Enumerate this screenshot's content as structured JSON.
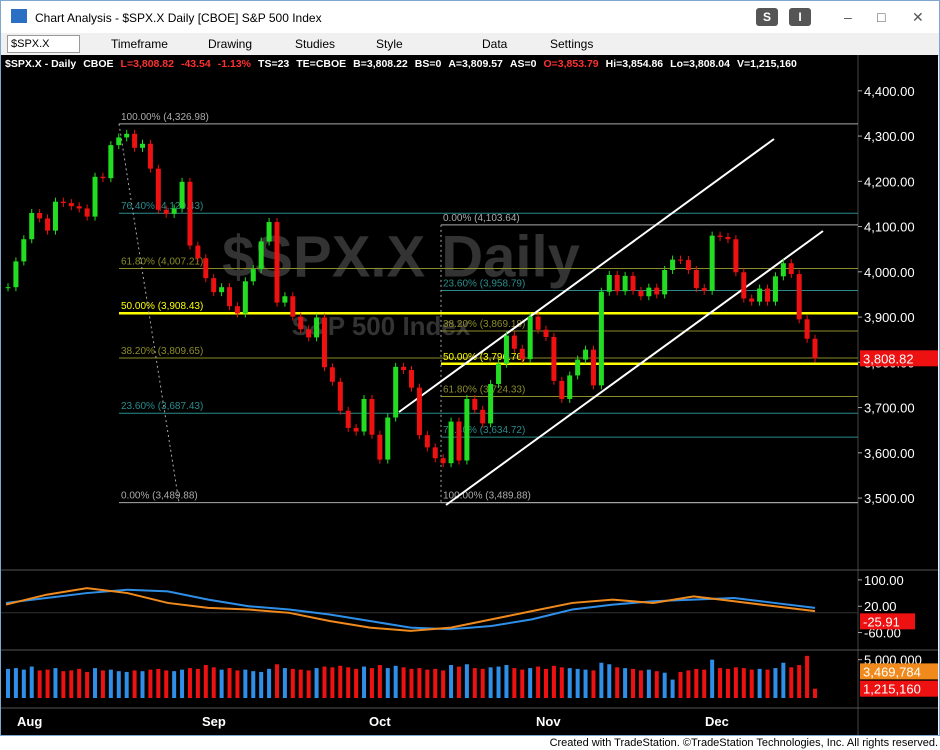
{
  "window": {
    "title": "Chart Analysis - $SPX.X Daily [CBOE] S&P 500 Index",
    "buttons": [
      "S",
      "I"
    ]
  },
  "toolbar": {
    "symbol": "$SPX.X",
    "items": [
      "Timeframe",
      "Drawing",
      "Studies",
      "Style",
      "Data",
      "Settings"
    ]
  },
  "status": [
    {
      "text": "$SPX.X - Daily",
      "color": "#ffffff"
    },
    {
      "text": "CBOE",
      "color": "#ffffff"
    },
    {
      "text": "L=3,808.82",
      "color": "#ff3030"
    },
    {
      "text": "-43.54",
      "color": "#ff3030"
    },
    {
      "text": "-1.13%",
      "color": "#ff3030"
    },
    {
      "text": "TS=23",
      "color": "#ffffff"
    },
    {
      "text": "TE=CBOE",
      "color": "#ffffff"
    },
    {
      "text": "B=3,808.22",
      "color": "#ffffff"
    },
    {
      "text": "BS=0",
      "color": "#ffffff"
    },
    {
      "text": "A=3,809.57",
      "color": "#ffffff"
    },
    {
      "text": "AS=0",
      "color": "#ffffff"
    },
    {
      "text": "O=3,853.79",
      "color": "#ff3030"
    },
    {
      "text": "Hi=3,854.86",
      "color": "#ffffff"
    },
    {
      "text": "Lo=3,808.04",
      "color": "#ffffff"
    },
    {
      "text": "V=1,215,160",
      "color": "#ffffff"
    }
  ],
  "watermark": {
    "title": "$SPX.X Daily",
    "subtitle": "S&P 500 Index"
  },
  "chart_data": {
    "type": "candlestick",
    "closes": [
      3966,
      4023,
      4072,
      4130,
      4118,
      4091,
      4155,
      4152,
      4145,
      4140,
      4122,
      4210,
      4207,
      4280,
      4297,
      4305,
      4274,
      4283,
      4228,
      4137,
      4128,
      4140,
      4199,
      4058,
      4030,
      3986,
      3955,
      3966,
      3924,
      3908,
      3979,
      4006,
      4067,
      4110,
      3932,
      3946,
      3901,
      3873,
      3855,
      3899,
      3789,
      3757,
      3693,
      3655,
      3647,
      3719,
      3640,
      3585,
      3678,
      3790,
      3783,
      3744,
      3639,
      3612,
      3588,
      3577,
      3669,
      3583,
      3719,
      3695,
      3665,
      3752,
      3797,
      3859,
      3830,
      3807,
      3901,
      3872,
      3856,
      3759,
      3719,
      3771,
      3806,
      3828,
      3749,
      3956,
      3993,
      3957,
      3991,
      3958,
      3946,
      3965,
      3950,
      4004,
      4027,
      4026,
      4004,
      3964,
      3958,
      4080,
      4077,
      4072,
      3999,
      3941,
      3934,
      3963,
      3934,
      3990,
      4019,
      3995,
      3895,
      3852,
      3808.82
    ],
    "up_color": "#22dd22",
    "down_color": "#ee1111",
    "ylim": [
      3341,
      4446
    ],
    "yticks": [
      {
        "value": 4400,
        "label": "4,400.00"
      },
      {
        "value": 4300,
        "label": "4,300.00"
      },
      {
        "value": 4200,
        "label": "4,200.00"
      },
      {
        "value": 4100,
        "label": "4,100.00"
      },
      {
        "value": 4000,
        "label": "4,000.00"
      },
      {
        "value": 3900,
        "label": "3,900.00"
      },
      {
        "value": 3800,
        "label": "3,800.00"
      },
      {
        "value": 3700,
        "label": "3,700.00"
      },
      {
        "value": 3600,
        "label": "3,600.00"
      },
      {
        "value": 3500,
        "label": "3,500.00"
      }
    ],
    "price_tag": {
      "value": 3808.82,
      "label": "3,808.82"
    },
    "x_labels": [
      "Aug",
      "Sep",
      "Oct",
      "Nov",
      "Dec"
    ],
    "fib_left": [
      {
        "value": 4326.98,
        "label": "100.00% (4,326.98)",
        "color": "#aaaaaa"
      },
      {
        "value": 4129.43,
        "label": "76.40% (4,129.43)",
        "color": "#2a8c8c"
      },
      {
        "value": 4007.21,
        "label": "61.80% (4,007.21)",
        "color": "#8c8c2a"
      },
      {
        "value": 3908.43,
        "label": "50.00% (3,908.43)",
        "color": "#ffff00"
      },
      {
        "value": 3809.65,
        "label": "38.20% (3,809.65)",
        "color": "#8c8c2a"
      },
      {
        "value": 3687.43,
        "label": "23.60% (3,687.43)",
        "color": "#2a8c8c"
      },
      {
        "value": 3489.88,
        "label": "0.00% (3,489.88)",
        "color": "#aaaaaa"
      }
    ],
    "fib_right": [
      {
        "value": 4103.64,
        "label": "0.00% (4,103.64)",
        "color": "#aaaaaa"
      },
      {
        "value": 3958.79,
        "label": "23.60% (3,958.79)",
        "color": "#2a8c8c"
      },
      {
        "value": 3869.18,
        "label": "38.20% (3,869.18)",
        "color": "#8c8c2a"
      },
      {
        "value": 3796.76,
        "label": "50.00% (3,796.76)",
        "color": "#ffff00"
      },
      {
        "value": 3724.33,
        "label": "61.80% (3,724.33)",
        "color": "#8c8c2a"
      },
      {
        "value": 3634.72,
        "label": "76.40% (3,634.72)",
        "color": "#2a8c8c"
      },
      {
        "value": 3489.88,
        "label": "100.00% (3,489.88)",
        "color": "#aaaaaa"
      }
    ],
    "indicator": {
      "ylim": [
        -113,
        124
      ],
      "yticks": [
        {
          "value": 100,
          "label": "100.00"
        },
        {
          "value": 20,
          "label": "20.00"
        },
        {
          "value": -60,
          "label": "-60.00"
        }
      ],
      "series": [
        {
          "name": "MACD",
          "color": "#2f8fe8",
          "values": [
            30,
            45,
            60,
            70,
            65,
            40,
            20,
            10,
            -5,
            -25,
            -45,
            -50,
            -40,
            -20,
            10,
            25,
            35,
            40,
            45,
            30,
            15
          ]
        },
        {
          "name": "Signal",
          "color": "#f08a1c",
          "values": [
            25,
            55,
            75,
            60,
            30,
            15,
            10,
            0,
            -25,
            -45,
            -55,
            -45,
            -20,
            5,
            30,
            40,
            30,
            50,
            35,
            20,
            5
          ]
        }
      ],
      "tag": {
        "value": -25.91,
        "label": "-25.91"
      }
    },
    "volume": {
      "ylim": [
        0,
        6000000
      ],
      "yticks": [
        {
          "value": 5000000,
          "label": "5,000,000"
        }
      ],
      "values": [
        3800000,
        3900000,
        3700000,
        4100000,
        3600000,
        3700000,
        3900000,
        3500000,
        3600000,
        3800000,
        3400000,
        3900000,
        3600000,
        3700000,
        3500000,
        3400000,
        3600000,
        3500000,
        3700000,
        3800000,
        3600000,
        3500000,
        3700000,
        3900000,
        3800000,
        4300000,
        4000000,
        3700000,
        3900000,
        3600000,
        3700000,
        3500000,
        3400000,
        3800000,
        4400000,
        3900000,
        3800000,
        3700000,
        3600000,
        3900000,
        4100000,
        4000000,
        4200000,
        4000000,
        3800000,
        4100000,
        3900000,
        4300000,
        3900000,
        4200000,
        4000000,
        3800000,
        3900000,
        3700000,
        3800000,
        3600000,
        4300000,
        4100000,
        4400000,
        3900000,
        3800000,
        4000000,
        4100000,
        4300000,
        3900000,
        3700000,
        3900000,
        4100000,
        3800000,
        4200000,
        4000000,
        3900000,
        3800000,
        3700000,
        3600000,
        4600000,
        4400000,
        4000000,
        3900000,
        3800000,
        3600000,
        3700000,
        3500000,
        3300000,
        2400000,
        3400000,
        3600000,
        3800000,
        3700000,
        5000000,
        3900000,
        3800000,
        4000000,
        3900000,
        3700000,
        3800000,
        3700000,
        3900000,
        4600000,
        4000000,
        4300000,
        5500000,
        1215160
      ],
      "tags": [
        {
          "value": 3469784,
          "label": "3,469,784",
          "color": "#f08a1c"
        },
        {
          "value": 1215160,
          "label": "1,215,160",
          "color": "#ee1111"
        }
      ]
    }
  },
  "footer": "Created with TradeStation. ©TradeStation Technologies, Inc. All rights reserved."
}
